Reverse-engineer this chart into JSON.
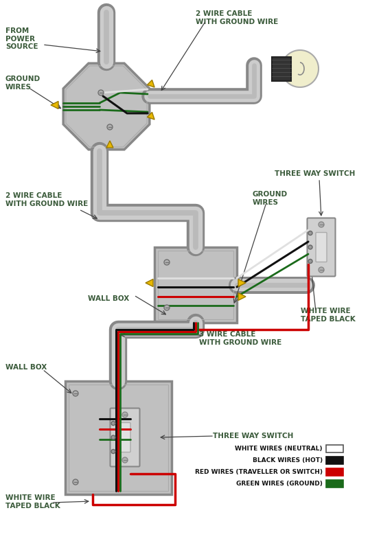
{
  "bg": "#ffffff",
  "label_color": "#3a5a3a",
  "lfs": 7.5,
  "wires": {
    "white": "#e0e0e0",
    "black": "#111111",
    "red": "#cc0000",
    "green": "#1a6a1a",
    "yellow": "#e8b800",
    "gray_dark": "#888888",
    "gray_mid": "#aaaaaa",
    "gray_light": "#cccccc",
    "box_fill": "#c0c0c0",
    "box_edge": "#888888"
  },
  "legend": [
    {
      "label": "WHITE WIRES (NEUTRAL)",
      "fc": "#ffffff",
      "ec": "#555555"
    },
    {
      "label": "BLACK WIRES (HOT)",
      "fc": "#111111",
      "ec": "#111111"
    },
    {
      "label": "RED WIRES (TRAVELLER OR SWITCH)",
      "fc": "#cc0000",
      "ec": "#cc0000"
    },
    {
      "label": "GREEN WIRES (GROUND)",
      "fc": "#1a6a1a",
      "ec": "#1a6a1a"
    }
  ]
}
